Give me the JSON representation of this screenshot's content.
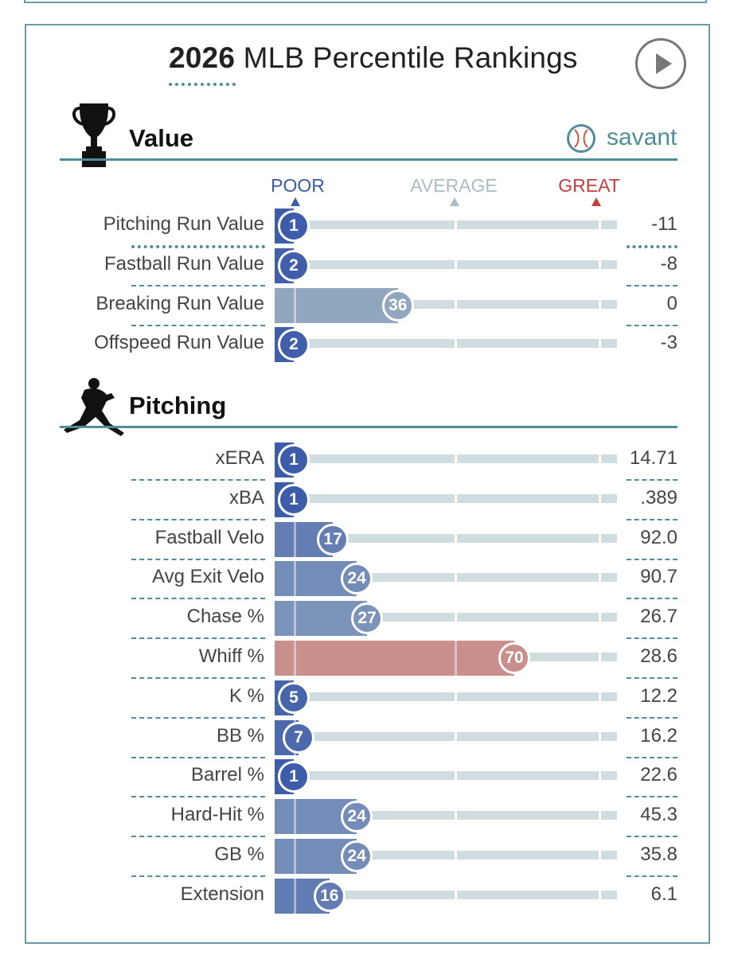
{
  "page": {
    "title_year": "2026",
    "title_rest": " MLB Percentile Rankings",
    "brand": "savant"
  },
  "scale": {
    "poor": "POOR",
    "average": "AVERAGE",
    "great": "GREAT"
  },
  "colors": {
    "poor": "#3b5aa8",
    "average": "#a9bcc6",
    "great": "#c43c3c",
    "accent": "#4f8d99"
  },
  "sections": [
    {
      "title": "Value",
      "icon": "trophy-icon"
    },
    {
      "title": "Pitching",
      "icon": "pitcher-icon"
    }
  ],
  "chart_data": {
    "type": "bar",
    "title": "2026 MLB Percentile Rankings",
    "xlim": [
      0,
      100
    ],
    "groups": [
      {
        "name": "Value",
        "metrics": [
          {
            "label": "Pitching Run Value",
            "percentile": 1,
            "value": "-11"
          },
          {
            "label": "Fastball Run Value",
            "percentile": 2,
            "value": "-8"
          },
          {
            "label": "Breaking Run Value",
            "percentile": 36,
            "value": "0"
          },
          {
            "label": "Offspeed Run Value",
            "percentile": 2,
            "value": "-3"
          }
        ]
      },
      {
        "name": "Pitching",
        "metrics": [
          {
            "label": "xERA",
            "percentile": 1,
            "value": "14.71"
          },
          {
            "label": "xBA",
            "percentile": 1,
            "value": ".389"
          },
          {
            "label": "Fastball Velo",
            "percentile": 17,
            "value": "92.0"
          },
          {
            "label": "Avg Exit Velo",
            "percentile": 24,
            "value": "90.7"
          },
          {
            "label": "Chase %",
            "percentile": 27,
            "value": "26.7"
          },
          {
            "label": "Whiff %",
            "percentile": 70,
            "value": "28.6"
          },
          {
            "label": "K %",
            "percentile": 5,
            "value": "12.2"
          },
          {
            "label": "BB %",
            "percentile": 7,
            "value": "16.2"
          },
          {
            "label": "Barrel %",
            "percentile": 1,
            "value": "22.6"
          },
          {
            "label": "Hard-Hit %",
            "percentile": 24,
            "value": "45.3"
          },
          {
            "label": "GB %",
            "percentile": 24,
            "value": "35.8"
          },
          {
            "label": "Extension",
            "percentile": 16,
            "value": "6.1"
          }
        ]
      }
    ]
  }
}
